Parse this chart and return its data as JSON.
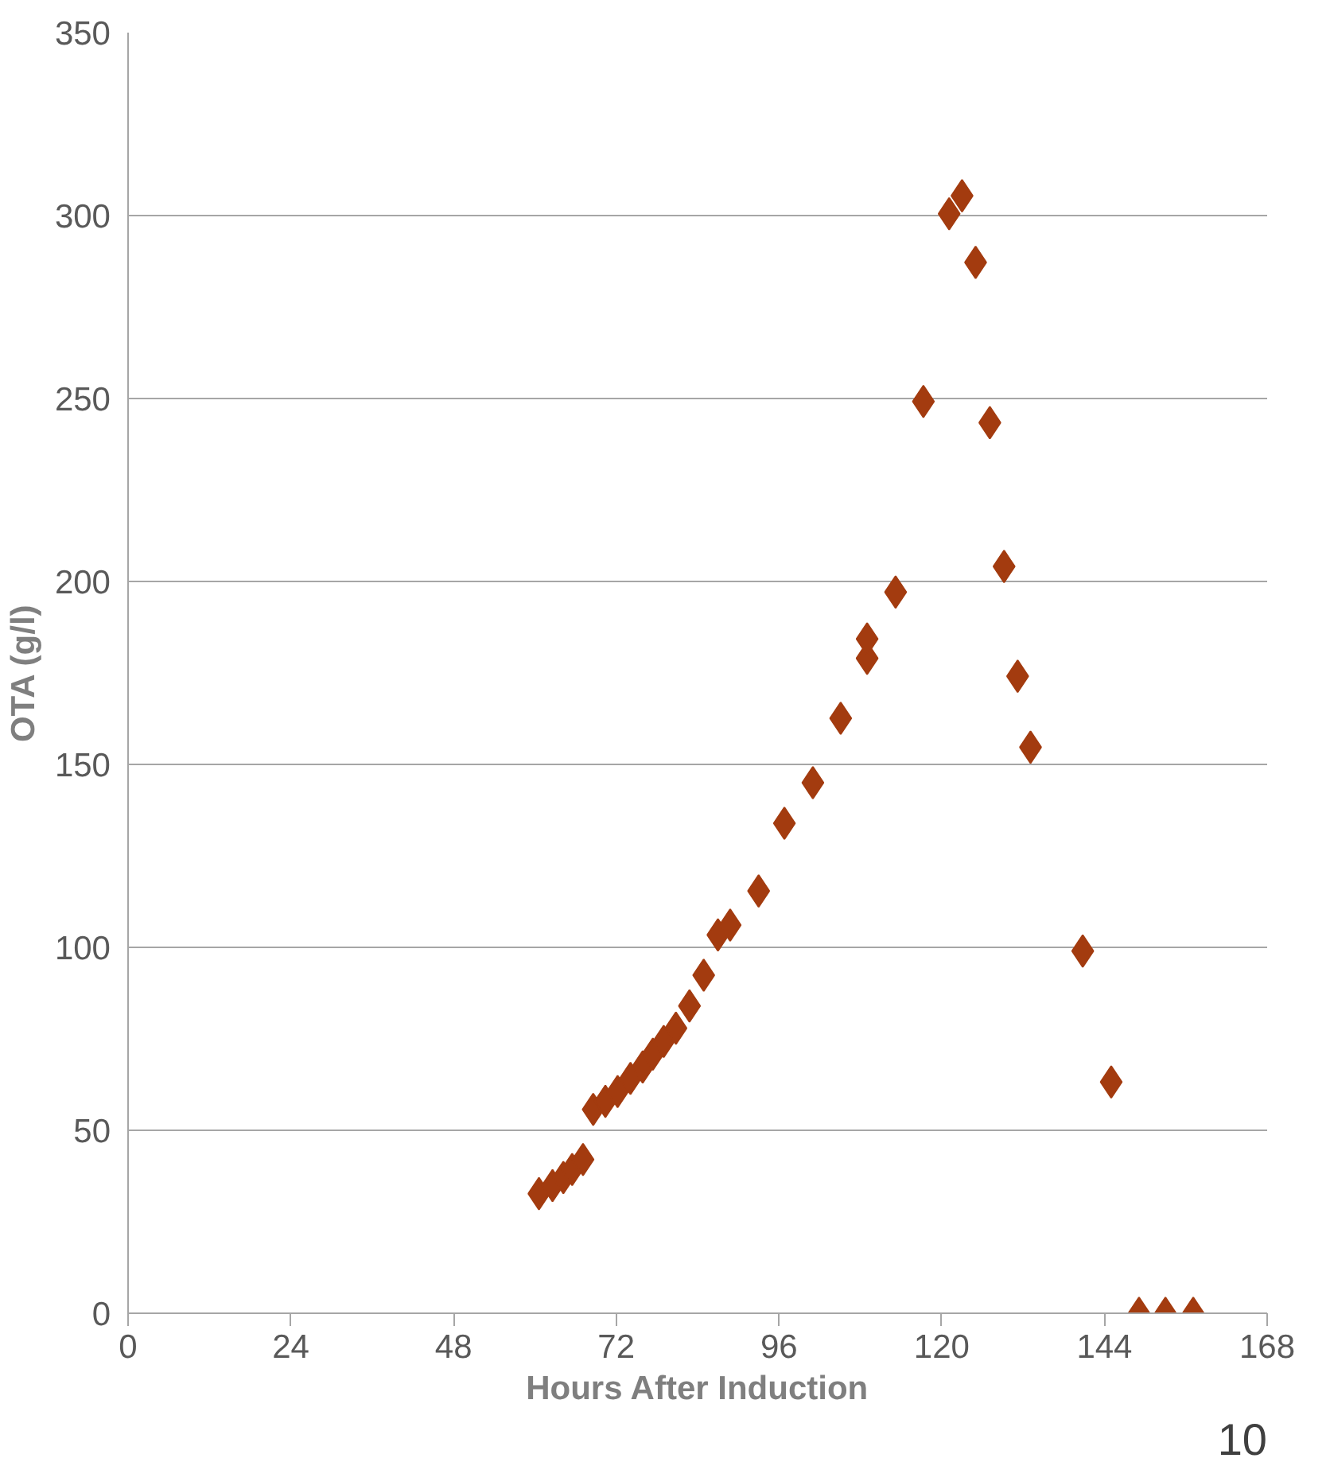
{
  "chart_data": {
    "type": "scatter",
    "xlabel": "Hours After Induction",
    "ylabel": "OTA (g/l)",
    "annotations": [
      "10"
    ],
    "x": [
      60.6,
      62.6,
      64.2,
      65.5,
      67.1,
      68.6,
      70.4,
      72.2,
      74.1,
      75.9,
      77.4,
      79.0,
      80.8,
      82.8,
      84.9,
      87.0,
      88.8,
      93.0,
      96.8,
      101.0,
      105.1,
      109.0,
      109.0,
      113.2,
      117.3,
      121.1,
      123.0,
      125.0,
      127.1,
      129.2,
      131.2,
      133.1,
      140.8,
      145.0,
      149.1,
      153.0,
      157.1
    ],
    "series": [
      {
        "color": "#a33b0f",
        "values": [
          32.7,
          34.9,
          37.1,
          39.3,
          42.0,
          55.7,
          57.9,
          60.6,
          64.2,
          67.3,
          70.8,
          74.3,
          77.9,
          84.0,
          92.4,
          103.4,
          106.1,
          115.4,
          133.9,
          145.0,
          162.6,
          179.0,
          184.3,
          197.1,
          249.2,
          300.5,
          305.4,
          287.2,
          243.4,
          204.1,
          174.1,
          154.7,
          99.0,
          63.2,
          0,
          0,
          0
        ]
      }
    ],
    "xlim": [
      0,
      168
    ],
    "xticks": [
      0,
      24,
      48,
      72,
      96,
      120,
      144,
      168
    ],
    "ylim": [
      0,
      350
    ],
    "yticks": [
      0,
      50,
      100,
      150,
      200,
      250,
      300,
      350
    ],
    "grid": "y",
    "marker": "diamond"
  }
}
